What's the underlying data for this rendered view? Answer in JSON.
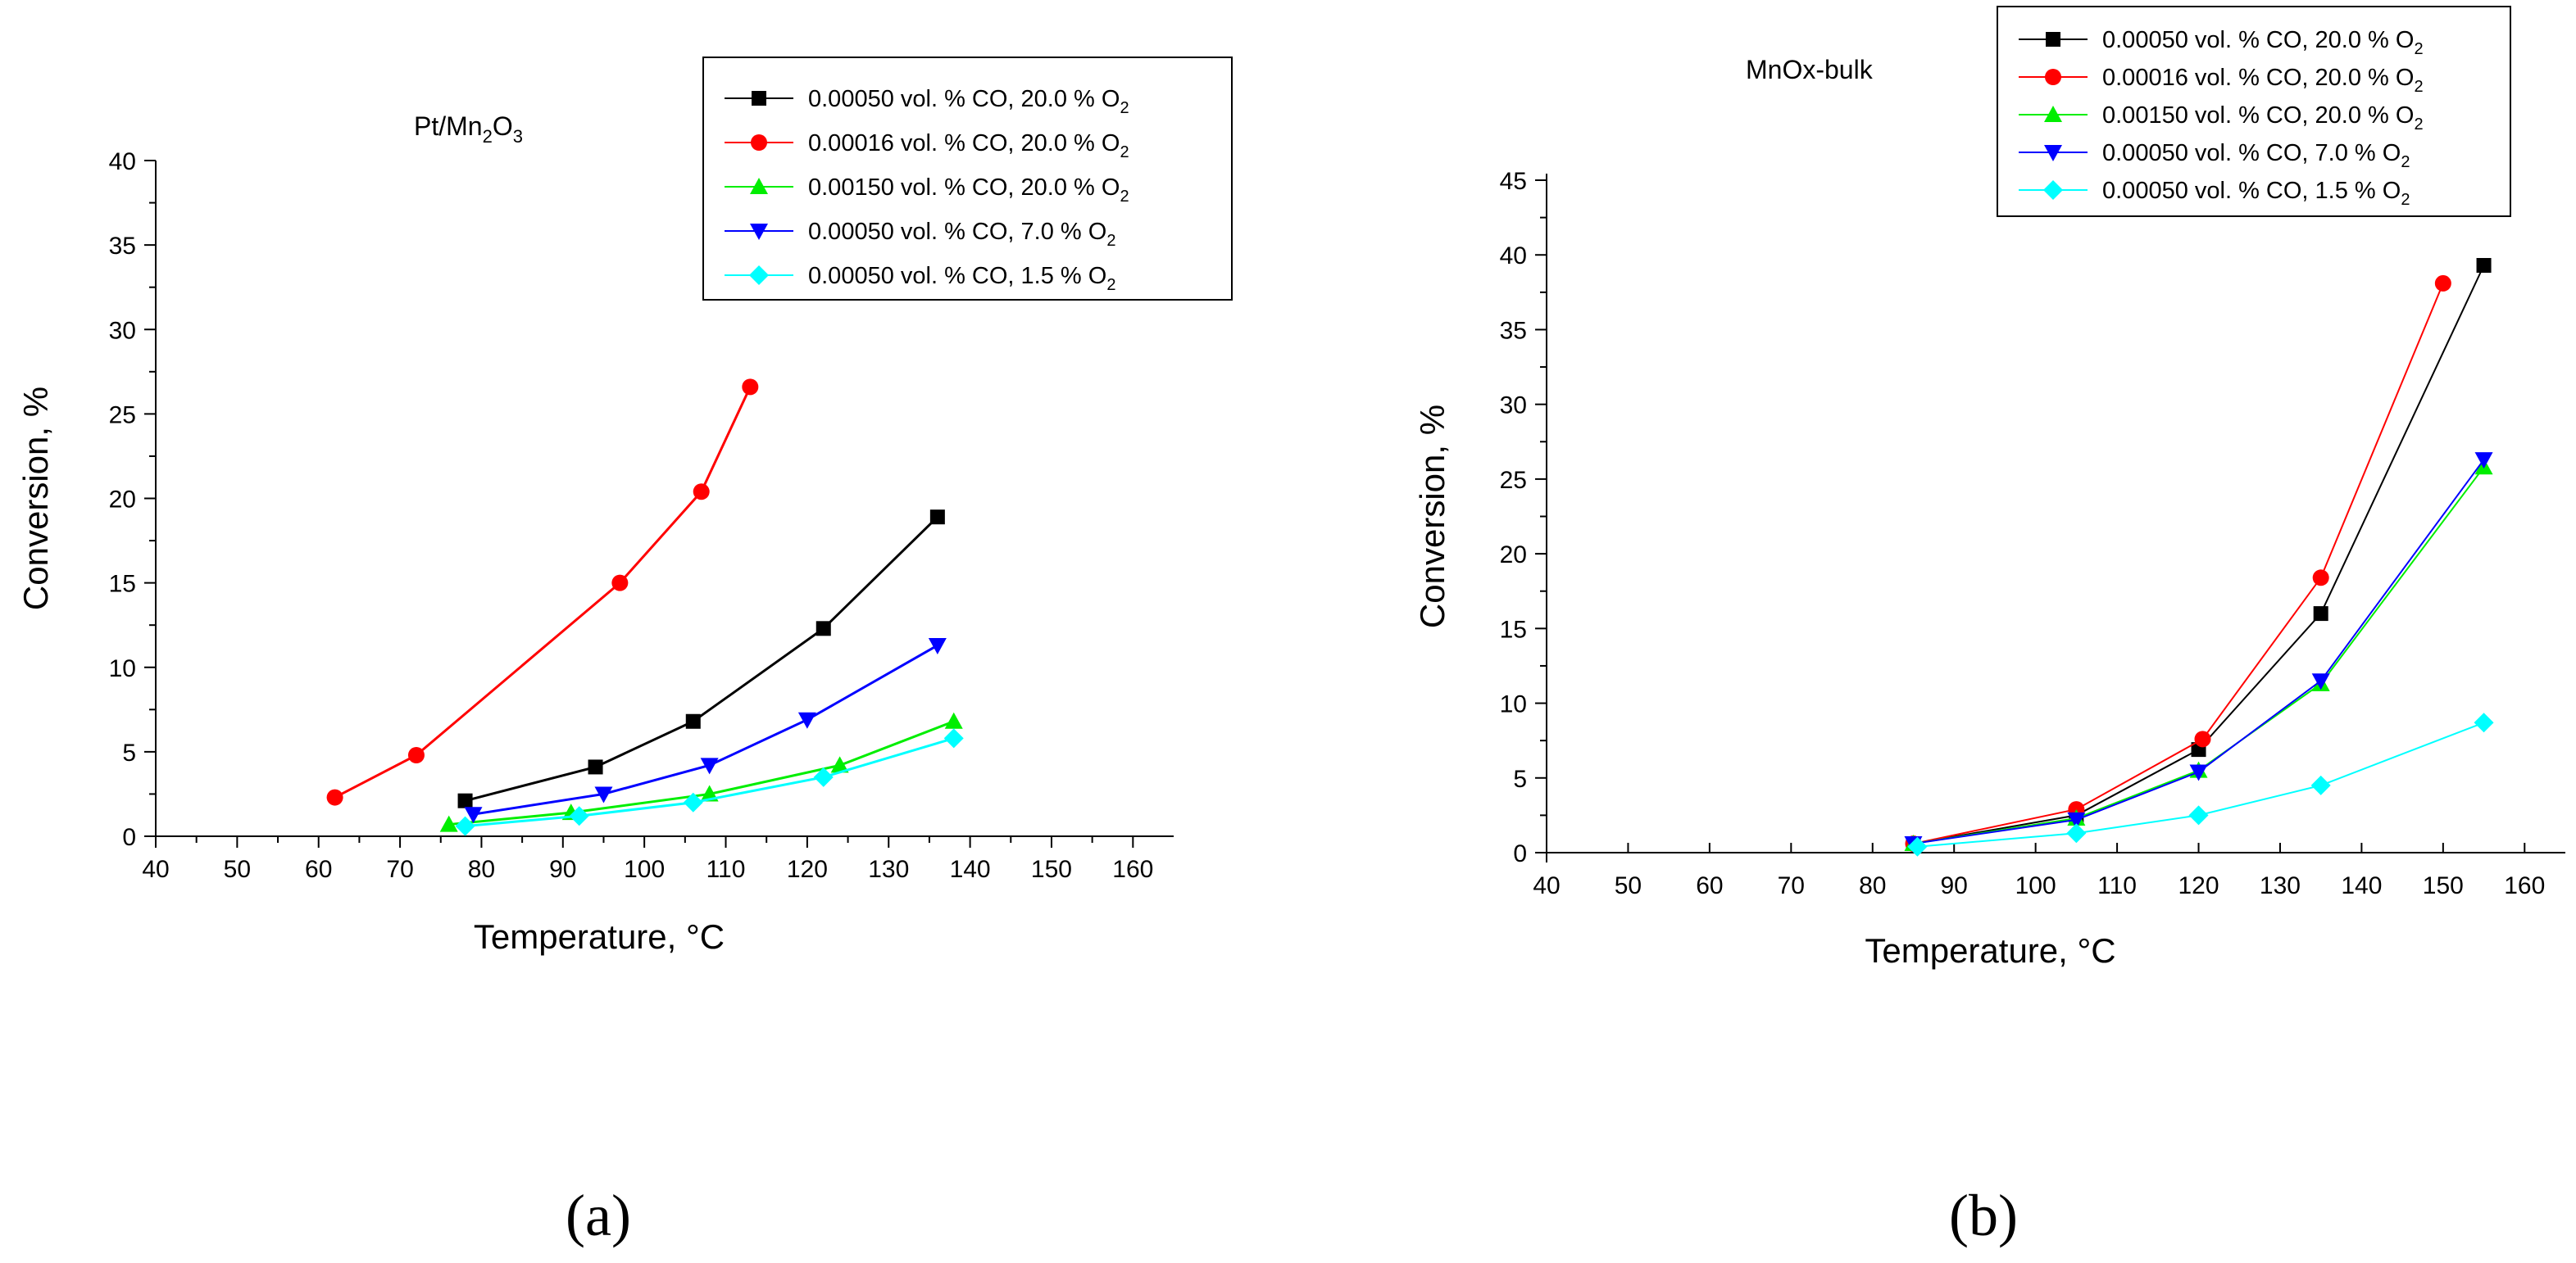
{
  "chart_data": [
    {
      "type": "line",
      "title": "Pt/Mn2O3",
      "title_base": "Pt/Mn",
      "title_sub1": "2",
      "title_mid": "O",
      "title_sub2": "3",
      "xlabel": "Temperature, °C",
      "ylabel": "Conversion, %",
      "xlim": [
        40,
        165
      ],
      "ylim": [
        0,
        40
      ],
      "xticks": [
        40,
        50,
        60,
        70,
        80,
        90,
        100,
        110,
        120,
        130,
        140,
        150,
        160
      ],
      "yticks": [
        0,
        5,
        10,
        15,
        20,
        25,
        30,
        35,
        40
      ],
      "panel_label": "(a)",
      "panel_letter": "a",
      "legend_position": "top-right",
      "series": [
        {
          "name": "0.00050 vol. % CO, 20.0 % O2",
          "label_main": "0.00050 vol. % CO, 20.0 % O",
          "label_sub": "2",
          "color": "#000000",
          "marker": "square",
          "x": [
            78,
            94,
            106,
            122,
            136
          ],
          "y": [
            2.1,
            4.1,
            6.8,
            12.3,
            18.9
          ]
        },
        {
          "name": "0.00016 vol. % CO, 20.0 % O2",
          "label_main": "0.00016 vol. % CO, 20.0 % O",
          "label_sub": "2",
          "color": "#ff0000",
          "marker": "circle",
          "x": [
            62,
            72,
            97,
            107,
            113
          ],
          "y": [
            2.3,
            4.8,
            15.0,
            20.4,
            26.6
          ]
        },
        {
          "name": "0.00150 vol. % CO, 20.0 % O2",
          "label_main": "0.00150 vol. % CO, 20.0 % O",
          "label_sub": "2",
          "color": "#00ee00",
          "marker": "triangle-up",
          "x": [
            76,
            91,
            108,
            124,
            138
          ],
          "y": [
            0.7,
            1.4,
            2.5,
            4.2,
            6.8
          ]
        },
        {
          "name": "0.00050 vol. % CO,  7.0 % O2",
          "label_main": "0.00050 vol. % CO,  7.0 % O",
          "label_sub": "2",
          "color": "#0000ff",
          "marker": "triangle-down",
          "x": [
            79,
            95,
            108,
            120,
            136
          ],
          "y": [
            1.3,
            2.5,
            4.2,
            6.9,
            11.3
          ]
        },
        {
          "name": "0.00050 vol. % CO,  1.5 % O2",
          "label_main": "0.00050 vol. % CO,  1.5 % O",
          "label_sub": "2",
          "color": "#00ffff",
          "marker": "diamond",
          "x": [
            78,
            92,
            106,
            122,
            138
          ],
          "y": [
            0.6,
            1.2,
            2.0,
            3.5,
            5.8
          ]
        }
      ]
    },
    {
      "type": "line",
      "title": "MnOx-bulk",
      "xlabel": "Temperature, °C",
      "ylabel": "Conversion, %",
      "xlim": [
        40,
        165
      ],
      "ylim": [
        0,
        45
      ],
      "xticks": [
        40,
        50,
        60,
        70,
        80,
        90,
        100,
        110,
        120,
        130,
        140,
        150,
        160
      ],
      "yticks": [
        0,
        5,
        10,
        15,
        20,
        25,
        30,
        35,
        40,
        45
      ],
      "panel_label": "(b)",
      "panel_letter": "b",
      "legend_position": "top-right",
      "series": [
        {
          "name": "0.00050 vol. % CO, 20.0 % O2",
          "label_main": "0.00050 vol. % CO, 20.0 % O",
          "label_sub": "2",
          "color": "#000000",
          "marker": "square",
          "x": [
            85,
            105,
            120,
            135,
            155
          ],
          "y": [
            0.6,
            2.5,
            6.9,
            16.0,
            39.3
          ]
        },
        {
          "name": "0.00016 vol. % CO, 20.0 % O2",
          "label_main": "0.00016 vol. % CO, 20.0 % O",
          "label_sub": "2",
          "color": "#ff0000",
          "marker": "circle",
          "x": [
            85,
            105,
            120.5,
            135,
            150
          ],
          "y": [
            0.6,
            2.9,
            7.6,
            18.4,
            38.1
          ]
        },
        {
          "name": "0.00150 vol. % CO, 20.0 % O2",
          "label_main": "0.00150 vol. % CO, 20.0 % O",
          "label_sub": "2",
          "color": "#00ee00",
          "marker": "triangle-up",
          "x": [
            85,
            105,
            120,
            135,
            155
          ],
          "y": [
            0.6,
            2.3,
            5.5,
            11.3,
            25.8
          ]
        },
        {
          "name": "0.00050 vol. % CO,  7.0 % O2",
          "label_main": "0.00050 vol. % CO,  7.0 % O",
          "label_sub": "2",
          "color": "#0000ff",
          "marker": "triangle-down",
          "x": [
            85,
            105,
            120,
            135,
            155
          ],
          "y": [
            0.6,
            2.2,
            5.4,
            11.5,
            26.3
          ]
        },
        {
          "name": "0.00050 vol. % CO,  1.5 % O2",
          "label_main": "0.00050 vol. % CO,  1.5 % O",
          "label_sub": "2",
          "color": "#00ffff",
          "marker": "diamond",
          "x": [
            85.5,
            105,
            120,
            135,
            155
          ],
          "y": [
            0.4,
            1.3,
            2.5,
            4.5,
            8.7
          ]
        }
      ]
    }
  ]
}
